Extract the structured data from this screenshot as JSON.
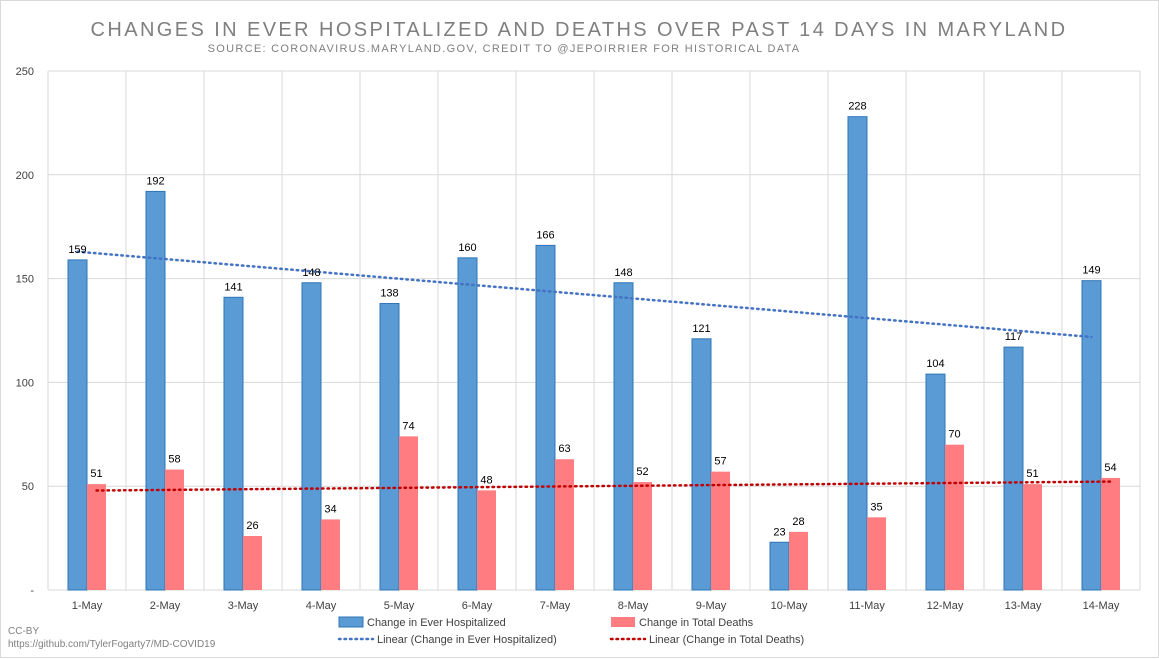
{
  "chart_data": {
    "type": "bar",
    "title": "CHANGES IN EVER HOSPITALIZED AND DEATHS OVER PAST 14 DAYS IN MARYLAND",
    "subtitle": "SOURCE: CORONAVIRUS.MARYLAND.GOV, CREDIT TO @JEPOIRRIER FOR HISTORICAL DATA",
    "categories": [
      "1-May",
      "2-May",
      "3-May",
      "4-May",
      "5-May",
      "6-May",
      "7-May",
      "8-May",
      "9-May",
      "10-May",
      "11-May",
      "12-May",
      "13-May",
      "14-May"
    ],
    "series": [
      {
        "name": "Change in Ever Hospitalized",
        "color": "#5b9bd5",
        "border": "#2e75b6",
        "values": [
          159,
          192,
          141,
          148,
          138,
          160,
          166,
          148,
          121,
          23,
          228,
          104,
          117,
          149
        ]
      },
      {
        "name": "Change in Total Deaths",
        "color": "#ff7c80",
        "values": [
          51,
          58,
          26,
          34,
          74,
          48,
          63,
          52,
          57,
          28,
          35,
          70,
          51,
          54
        ]
      }
    ],
    "trendlines": [
      {
        "name": "Linear (Change in Ever Hospitalized)",
        "series": 0,
        "color": "#4472c4",
        "style": "dotted"
      },
      {
        "name": "Linear (Change in Total Deaths)",
        "series": 1,
        "color": "#c00000",
        "style": "dotted"
      }
    ],
    "ylim": [
      0,
      250
    ],
    "yticks": [
      "250",
      "200",
      "150",
      "100",
      "50",
      "-"
    ],
    "ytick_values": [
      250,
      200,
      150,
      100,
      50,
      0
    ],
    "grid": true,
    "legend_position": "bottom"
  },
  "footer": {
    "license": "CC-BY",
    "url": "https://github.com/TylerFogarty7/MD-COVID19"
  }
}
